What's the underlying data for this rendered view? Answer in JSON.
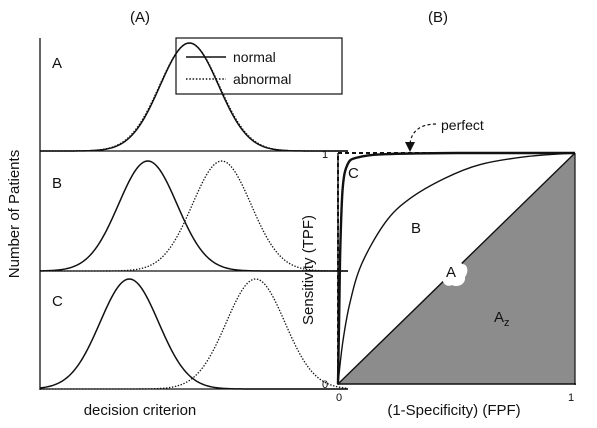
{
  "chart_data": [
    {
      "type": "line",
      "panel_label": "(A)",
      "ylabel": "Number of Patients",
      "xlabel": "decision criterion",
      "legend": {
        "placement": "top-right",
        "entries": [
          {
            "name": "normal",
            "style": "solid"
          },
          {
            "name": "abnormal",
            "style": "dotted"
          }
        ]
      },
      "x_range": [
        0,
        10
      ],
      "y_range": [
        0,
        1
      ],
      "grid": false,
      "subplots": [
        {
          "label": "A",
          "series": [
            {
              "name": "normal",
              "mean": 4.85,
              "sd": 0.95,
              "peak": 1.0
            },
            {
              "name": "abnormal",
              "mean": 4.85,
              "sd": 0.97,
              "peak": 1.0
            }
          ]
        },
        {
          "label": "B",
          "series": [
            {
              "name": "normal",
              "mean": 3.5,
              "sd": 0.95,
              "peak": 1.0
            },
            {
              "name": "abnormal",
              "mean": 5.9,
              "sd": 0.95,
              "peak": 1.0
            }
          ]
        },
        {
          "label": "C",
          "series": [
            {
              "name": "normal",
              "mean": 2.9,
              "sd": 0.95,
              "peak": 1.0
            },
            {
              "name": "abnormal",
              "mean": 7.0,
              "sd": 0.95,
              "peak": 1.0
            }
          ]
        }
      ]
    },
    {
      "type": "line",
      "panel_label": "(B)",
      "xlabel": "(1-Specificity) (FPF)",
      "ylabel": "Sensitivity (TPF)",
      "xlim": [
        0,
        1
      ],
      "ylim": [
        0,
        1
      ],
      "x_ticks": [
        "0",
        "1"
      ],
      "y_ticks": [
        "0",
        "1"
      ],
      "grid": false,
      "series": [
        {
          "name": "perfect",
          "style": "dashed",
          "points": [
            [
              0,
              0
            ],
            [
              0,
              1
            ],
            [
              1,
              1
            ]
          ]
        },
        {
          "name": "C",
          "style": "solid",
          "points": [
            [
              0,
              0
            ],
            [
              0.005,
              0.3
            ],
            [
              0.01,
              0.6
            ],
            [
              0.02,
              0.85
            ],
            [
              0.04,
              0.95
            ],
            [
              0.08,
              0.98
            ],
            [
              0.2,
              0.995
            ],
            [
              0.5,
              1.0
            ],
            [
              1,
              1
            ]
          ]
        },
        {
          "name": "B",
          "style": "solid",
          "points": [
            [
              0,
              0
            ],
            [
              0.02,
              0.18
            ],
            [
              0.05,
              0.35
            ],
            [
              0.1,
              0.52
            ],
            [
              0.2,
              0.7
            ],
            [
              0.3,
              0.8
            ],
            [
              0.45,
              0.89
            ],
            [
              0.6,
              0.95
            ],
            [
              0.8,
              0.985
            ],
            [
              1,
              1
            ]
          ]
        },
        {
          "name": "A",
          "style": "solid",
          "points": [
            [
              0,
              0
            ],
            [
              1,
              1
            ]
          ]
        }
      ],
      "shaded_area": {
        "label": "Az",
        "label_main": "A",
        "label_sub": "z",
        "region": "below-diagonal"
      },
      "annotations": [
        {
          "text": "perfect",
          "arrow": true
        },
        {
          "text": "C"
        },
        {
          "text": "B"
        },
        {
          "text": "A"
        }
      ]
    }
  ]
}
